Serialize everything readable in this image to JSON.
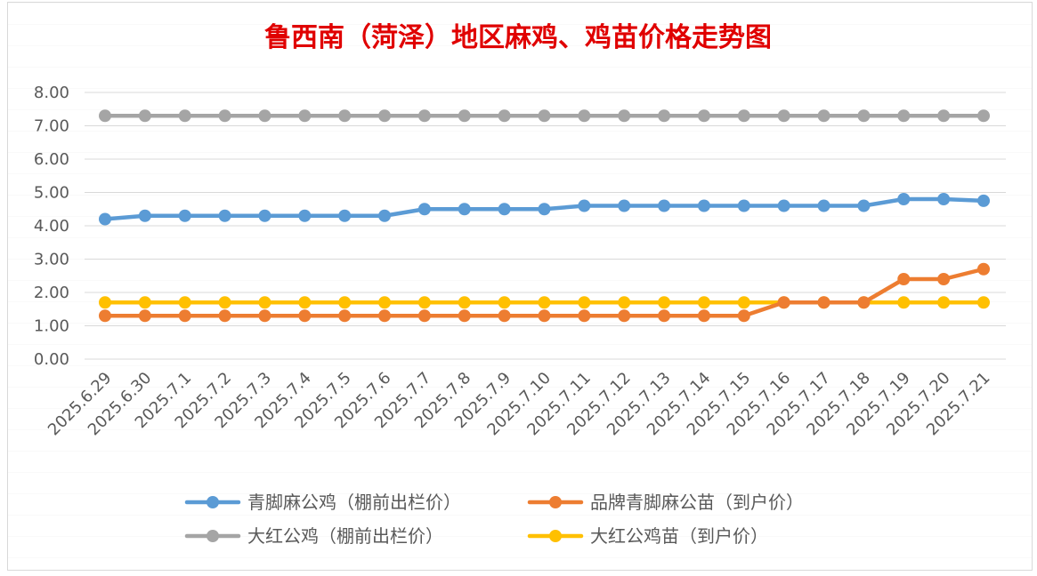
{
  "chart_data": {
    "type": "line",
    "title": "鲁西南（菏泽）地区麻鸡、鸡苗价格走势图",
    "xlabel": "",
    "ylabel": "",
    "ylim": [
      0,
      8
    ],
    "yticks": [
      "0.00",
      "1.00",
      "2.00",
      "3.00",
      "4.00",
      "5.00",
      "6.00",
      "7.00",
      "8.00"
    ],
    "grid": true,
    "legend_position": "bottom",
    "categories": [
      "2025.6.29",
      "2025.6.30",
      "2025.7.1",
      "2025.7.2",
      "2025.7.3",
      "2025.7.4",
      "2025.7.5",
      "2025.7.6",
      "2025.7.7",
      "2025.7.8",
      "2025.7.9",
      "2025.7.10",
      "2025.7.11",
      "2025.7.12",
      "2025.7.13",
      "2025.7.14",
      "2025.7.15",
      "2025.7.16",
      "2025.7.17",
      "2025.7.18",
      "2025.7.19",
      "2025.7.20",
      "2025.7.21"
    ],
    "series": [
      {
        "name": "青脚麻公鸡（棚前出栏价）",
        "color": "#5b9bd5",
        "values": [
          4.2,
          4.3,
          4.3,
          4.3,
          4.3,
          4.3,
          4.3,
          4.3,
          4.5,
          4.5,
          4.5,
          4.5,
          4.6,
          4.6,
          4.6,
          4.6,
          4.6,
          4.6,
          4.6,
          4.6,
          4.8,
          4.8,
          4.75
        ]
      },
      {
        "name": "品牌青脚麻公苗（到户价）",
        "color": "#ed7d31",
        "values": [
          1.3,
          1.3,
          1.3,
          1.3,
          1.3,
          1.3,
          1.3,
          1.3,
          1.3,
          1.3,
          1.3,
          1.3,
          1.3,
          1.3,
          1.3,
          1.3,
          1.3,
          1.7,
          1.7,
          1.7,
          2.4,
          2.4,
          2.7
        ]
      },
      {
        "name": "大红公鸡（棚前出栏价）",
        "color": "#a5a5a5",
        "values": [
          7.3,
          7.3,
          7.3,
          7.3,
          7.3,
          7.3,
          7.3,
          7.3,
          7.3,
          7.3,
          7.3,
          7.3,
          7.3,
          7.3,
          7.3,
          7.3,
          7.3,
          7.3,
          7.3,
          7.3,
          7.3,
          7.3,
          7.3
        ]
      },
      {
        "name": "大红公鸡苗（到户价）",
        "color": "#ffc000",
        "values": [
          1.7,
          1.7,
          1.7,
          1.7,
          1.7,
          1.7,
          1.7,
          1.7,
          1.7,
          1.7,
          1.7,
          1.7,
          1.7,
          1.7,
          1.7,
          1.7,
          1.7,
          1.7,
          1.7,
          1.7,
          1.7,
          1.7,
          1.7
        ]
      }
    ]
  }
}
